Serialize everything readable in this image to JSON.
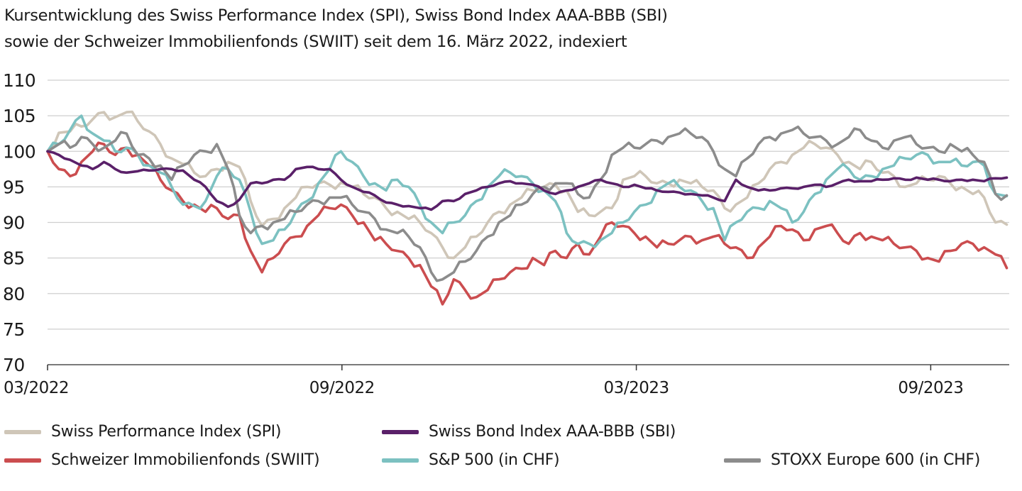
{
  "title_line1": "Kursentwicklung des Swiss Performance Index (SPI), Swiss Bond Index AAA-BBB (SBI)",
  "title_line2": "sowie der Schweizer Immobilienfonds (SWIIT) seit dem 16. März 2022, indexiert",
  "chart_data": {
    "type": "line",
    "title": "Kursentwicklung des Swiss Performance Index (SPI), Swiss Bond Index AAA-BBB (SBI) sowie der Schweizer Immobilienfonds (SWIIT) seit dem 16. März 2022, indexiert",
    "xlabel": "",
    "ylabel": "",
    "ylim": [
      70,
      110
    ],
    "yticks": [
      70,
      75,
      80,
      85,
      90,
      95,
      100,
      105,
      110
    ],
    "xlim_months": [
      0,
      19.6
    ],
    "xticks": [
      {
        "label": "03/2022",
        "month": 0
      },
      {
        "label": "09/2022",
        "month": 6
      },
      {
        "label": "03/2023",
        "month": 12
      },
      {
        "label": "09/2023",
        "month": 18
      }
    ],
    "grid": true,
    "legend_position": "bottom",
    "x_note": "x values are months since 16 March 2022, sampled roughly weekly",
    "x": [
      0,
      0.23,
      0.46,
      0.69,
      0.92,
      1.15,
      1.38,
      1.61,
      1.84,
      2.07,
      2.3,
      2.53,
      2.76,
      2.99,
      3.22,
      3.45,
      3.68,
      3.91,
      4.14,
      4.37,
      4.6,
      4.83,
      5.06,
      5.29,
      5.52,
      5.75,
      5.98,
      6.21,
      6.44,
      6.67,
      6.9,
      7.13,
      7.36,
      7.59,
      7.82,
      8.05,
      8.28,
      8.51,
      8.74,
      8.97,
      9.2,
      9.43,
      9.66,
      9.89,
      10.12,
      10.35,
      10.58,
      10.81,
      11.04,
      11.27,
      11.5,
      11.73,
      11.96,
      12.19,
      12.42,
      12.65,
      12.88,
      13.11,
      13.34,
      13.57,
      13.8,
      14.03,
      14.26,
      14.49,
      14.72,
      14.95,
      15.18,
      15.41,
      15.64,
      15.87,
      16.1,
      16.33,
      16.56,
      16.79,
      17.02,
      17.25,
      17.48,
      17.71,
      17.94,
      18.17,
      18.4,
      18.63,
      18.86,
      19.09,
      19.32,
      19.55
    ],
    "series": [
      {
        "name": "Swiss Performance Index (SPI)",
        "color": "#cfc6b8",
        "values": [
          100,
          102.6,
          102.8,
          103.5,
          104.5,
          105.5,
          104.8,
          105.5,
          104.2,
          102.8,
          101.0,
          99.0,
          98.2,
          97.0,
          96.5,
          97.5,
          98.5,
          97.8,
          93.0,
          89.5,
          90.5,
          92.0,
          93.5,
          95.0,
          95.5,
          95.3,
          95.6,
          95.0,
          94.0,
          93.5,
          92.0,
          91.5,
          90.5,
          90.0,
          88.5,
          86.5,
          85.0,
          86.5,
          88.0,
          90.0,
          91.5,
          92.5,
          93.5,
          94.5,
          95.0,
          95.3,
          94.5,
          91.5,
          91.0,
          91.5,
          92.0,
          96.0,
          96.5,
          96.5,
          95.5,
          95.5,
          96.0,
          95.5,
          95.0,
          94.5,
          92.0,
          92.5,
          93.5,
          95.5,
          97.5,
          98.5,
          99.5,
          100.5,
          101.0,
          100.5,
          99.5,
          98.5,
          97.5,
          98.5,
          97.0,
          96.5,
          95.0,
          95.5,
          96.0,
          96.5,
          95.5,
          95.0,
          94.0,
          93.5,
          90.0,
          89.7
        ]
      },
      {
        "name": "Swiss Bond Index AAA-BBB (SBI)",
        "color": "#5a2069",
        "values": [
          100,
          99.5,
          98.8,
          98.0,
          97.5,
          98.5,
          97.5,
          97.0,
          97.2,
          97.3,
          97.5,
          97.5,
          97.3,
          96.0,
          95.0,
          93.0,
          92.2,
          93.2,
          95.5,
          95.5,
          96.0,
          96.0,
          97.5,
          97.8,
          97.5,
          97.5,
          96.0,
          95.0,
          94.3,
          93.8,
          92.8,
          92.5,
          92.3,
          92.0,
          91.8,
          93.0,
          93.0,
          94.0,
          94.5,
          95.0,
          95.5,
          95.8,
          95.5,
          95.3,
          94.5,
          94.0,
          94.5,
          95.0,
          95.5,
          96.0,
          95.5,
          95.0,
          95.3,
          94.8,
          94.5,
          94.3,
          94.2,
          94.0,
          93.8,
          93.5,
          93.0,
          96.0,
          95.0,
          94.5,
          94.5,
          94.8,
          94.8,
          95.0,
          95.3,
          95.0,
          95.5,
          96.0,
          95.8,
          95.8,
          96.0,
          96.2,
          96.0,
          96.3,
          96.0,
          96.0,
          95.8,
          96.0,
          96.0,
          95.8,
          96.2,
          96.3
        ]
      },
      {
        "name": "Schweizer Immobilienfonds (SWIIT)",
        "color": "#cb4d4f",
        "values": [
          100,
          97.5,
          96.5,
          98.5,
          100.0,
          101.0,
          99.5,
          100.5,
          99.5,
          98.0,
          96.0,
          94.5,
          93.0,
          92.5,
          91.5,
          92.0,
          90.5,
          91.0,
          86.0,
          83.0,
          85.0,
          87.0,
          88.0,
          89.5,
          91.0,
          92.0,
          92.5,
          91.0,
          90.0,
          87.5,
          87.0,
          86.0,
          85.0,
          84.0,
          81.0,
          78.5,
          82.0,
          80.5,
          79.5,
          80.5,
          82.0,
          83.0,
          83.5,
          85.0,
          84.0,
          86.0,
          85.0,
          87.0,
          85.5,
          88.0,
          90.0,
          89.5,
          88.5,
          88.0,
          86.5,
          87.0,
          87.5,
          88.0,
          87.5,
          88.0,
          87.0,
          86.5,
          85.0,
          86.5,
          88.0,
          89.5,
          89.0,
          87.5,
          89.0,
          89.5,
          88.5,
          87.0,
          88.5,
          88.0,
          87.5,
          87.0,
          86.5,
          86.0,
          85.0,
          84.5,
          86.0,
          87.0,
          87.0,
          86.5,
          85.5,
          83.6
        ]
      },
      {
        "name": "S&P 500 (in CHF)",
        "color": "#7cc1c1",
        "values": [
          100,
          101.0,
          103.0,
          105.0,
          102.5,
          101.5,
          100.0,
          100.5,
          99.5,
          98.0,
          97.0,
          95.0,
          92.5,
          92.3,
          93.0,
          96.5,
          97.5,
          96.0,
          91.5,
          87.0,
          87.5,
          89.0,
          91.5,
          93.0,
          95.5,
          97.5,
          100.0,
          98.5,
          96.5,
          95.5,
          94.5,
          96.0,
          95.0,
          92.5,
          90.0,
          88.5,
          90.0,
          91.0,
          93.0,
          95.0,
          96.5,
          97.0,
          96.5,
          95.5,
          94.5,
          93.0,
          88.5,
          87.0,
          87.0,
          87.5,
          88.5,
          90.0,
          91.5,
          92.5,
          94.5,
          95.5,
          95.0,
          94.5,
          93.0,
          92.0,
          87.5,
          90.0,
          91.5,
          92.0,
          93.0,
          92.0,
          90.0,
          91.5,
          94.0,
          96.0,
          97.5,
          97.5,
          96.0,
          96.5,
          97.5,
          98.0,
          99.0,
          99.5,
          99.5,
          98.5,
          98.5,
          98.0,
          98.5,
          98.0,
          94.0,
          93.7
        ]
      },
      {
        "name": "STOXX Europe 600 (in CHF)",
        "color": "#8c8c8c",
        "values": [
          100,
          101.0,
          100.5,
          102.0,
          101.0,
          100.5,
          101.5,
          102.5,
          99.5,
          99.0,
          98.0,
          96.0,
          98.0,
          99.5,
          100.0,
          101.0,
          97.5,
          91.0,
          88.5,
          89.5,
          90.0,
          90.5,
          91.5,
          92.5,
          93.0,
          93.5,
          93.5,
          92.5,
          91.5,
          90.5,
          89.0,
          88.5,
          88.0,
          86.5,
          83.0,
          82.0,
          83.0,
          84.5,
          86.0,
          88.0,
          90.0,
          91.0,
          92.5,
          94.0,
          95.0,
          95.5,
          95.5,
          94.0,
          93.5,
          96.0,
          99.5,
          100.5,
          100.5,
          101.0,
          101.5,
          102.0,
          102.5,
          102.5,
          102.0,
          100.0,
          97.5,
          96.5,
          99.0,
          101.0,
          102.0,
          102.5,
          103.0,
          102.5,
          102.0,
          101.5,
          101.0,
          102.0,
          103.0,
          101.5,
          100.5,
          101.5,
          102.0,
          101.0,
          100.5,
          100.0,
          101.0,
          100.0,
          99.5,
          98.5,
          94.0,
          93.8
        ]
      }
    ]
  },
  "legend": [
    {
      "label": "Swiss Performance Index (SPI)",
      "color": "#cfc6b8"
    },
    {
      "label": "Swiss Bond Index AAA-BBB (SBI)",
      "color": "#5a2069"
    },
    {
      "label": "Schweizer Immobilienfonds (SWIIT)",
      "color": "#cb4d4f"
    },
    {
      "label": "S&P 500 (in CHF)",
      "color": "#7cc1c1"
    },
    {
      "label": "STOXX Europe 600 (in CHF)",
      "color": "#8c8c8c"
    }
  ]
}
